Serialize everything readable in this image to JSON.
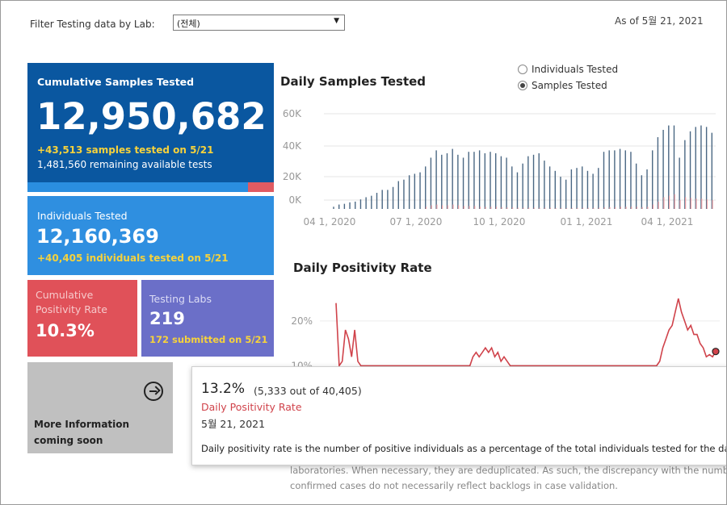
{
  "filter": {
    "label": "Filter Testing data by Lab:",
    "value": "(전체)"
  },
  "as_of": "As of 5월 21, 2021",
  "tiles": {
    "cumulative": {
      "title": "Cumulative Samples Tested",
      "value": "12,950,682",
      "delta": "+43,513 samples tested on 5/21",
      "remaining": "1,481,560 remaining available tests"
    },
    "individuals": {
      "title": "Individuals Tested",
      "value": "12,160,369",
      "delta": "+40,405  individuals  tested on 5/21"
    },
    "positivity": {
      "title_line1": "Cumulative",
      "title_line2": "Positivity Rate",
      "value": "10.3%"
    },
    "labs": {
      "title": "Testing Labs",
      "value": "219",
      "delta": "172 submitted on 5/21"
    },
    "more": {
      "line1": "More Information",
      "line2": "coming soon"
    }
  },
  "daily_samples": {
    "title": "Daily Samples Tested",
    "legend": [
      {
        "label": "Individuals Tested",
        "selected": false
      },
      {
        "label": "Samples Tested",
        "selected": true
      }
    ]
  },
  "daily_positivity": {
    "title": "Daily Positivity Rate"
  },
  "tooltip": {
    "value": "13.2%",
    "detail": "(5,333 out of  40,405)",
    "label": "Daily Positivity Rate",
    "date": "5월 21, 2021",
    "description": "Daily positivity rate is the number of positive individuals as a percentage of the total individuals tested for the day"
  },
  "footnote": {
    "line1": "laboratories. When necessary, they are deduplicated. As such, the discrepancy with the number",
    "line2": "confirmed cases do not necessarily reflect backlogs in case validation."
  },
  "colors": {
    "navy": "#0a57a0",
    "blue": "#2f8fe0",
    "red": "#e05159",
    "purple": "#6b6fc8",
    "grey": "#c0c0c0",
    "bar": "#4a6783",
    "line": "#d0434b"
  },
  "chart_data": [
    {
      "type": "bar",
      "title": "Daily Samples Tested",
      "x_tick_labels": [
        "04 1, 2020",
        "07 1, 2020",
        "10 1, 2020",
        "01 1, 2021",
        "04 1, 2021"
      ],
      "y_tick_labels": [
        "0K",
        "20K",
        "40K",
        "60K"
      ],
      "ylim": [
        0,
        65000
      ],
      "series": [
        {
          "name": "Samples Tested",
          "values": [
            1500,
            3000,
            3500,
            4500,
            5000,
            6500,
            8000,
            9000,
            11000,
            13000,
            13000,
            15000,
            19000,
            20000,
            23000,
            24000,
            25000,
            29000,
            35000,
            40000,
            37000,
            38000,
            41000,
            37000,
            35000,
            39000,
            39000,
            40000,
            38000,
            39000,
            38000,
            36000,
            35000,
            29000,
            25000,
            31000,
            36000,
            37000,
            38000,
            33000,
            29000,
            26000,
            22000,
            20000,
            27000,
            28000,
            29000,
            26000,
            24000,
            28000,
            39000,
            40000,
            40000,
            41000,
            40000,
            39000,
            31000,
            23000,
            27000,
            40000,
            49000,
            54000,
            57000,
            57000,
            35000,
            47000,
            53000,
            56000,
            57000,
            56000,
            52000
          ]
        },
        {
          "name": "Positive (red overlay)",
          "values": [
            0,
            0,
            0,
            0,
            0,
            0,
            0,
            0,
            0,
            0,
            0,
            0,
            0,
            0,
            0,
            0,
            0,
            1500,
            2500,
            3000,
            2500,
            2500,
            3000,
            2500,
            2000,
            2000,
            2000,
            1500,
            1500,
            1500,
            1500,
            1200,
            1000,
            1000,
            800,
            800,
            800,
            800,
            800,
            700,
            700,
            600,
            600,
            500,
            600,
            700,
            700,
            700,
            700,
            800,
            1000,
            1200,
            1200,
            1500,
            1500,
            1500,
            1500,
            1200,
            1500,
            3000,
            5000,
            8000,
            9000,
            10000,
            6000,
            8000,
            7500,
            7000,
            7000,
            6500,
            6000
          ]
        }
      ]
    },
    {
      "type": "line",
      "title": "Daily Positivity Rate",
      "y_tick_labels": [
        "10%",
        "20%"
      ],
      "ylim": [
        9,
        27
      ],
      "series": [
        {
          "name": "Daily Positivity Rate",
          "values": [
            24,
            10,
            11,
            18,
            16,
            12,
            18,
            11,
            10,
            10,
            10,
            10,
            10,
            10,
            10,
            10,
            10,
            10,
            10,
            10,
            10,
            10,
            10,
            10,
            10,
            10,
            10,
            10,
            10,
            10,
            10,
            10,
            10,
            10,
            10,
            10,
            10,
            10,
            10,
            10,
            10,
            10,
            10,
            10,
            12,
            13,
            12,
            13,
            14,
            13,
            14,
            12,
            13,
            11,
            12,
            11,
            10,
            10,
            10,
            10,
            10,
            10,
            10,
            10,
            10,
            10,
            10,
            10,
            10,
            10,
            10,
            10,
            10,
            10,
            10,
            10,
            10,
            10,
            10,
            10,
            10,
            10,
            10,
            10,
            10,
            10,
            10,
            10,
            10,
            10,
            10,
            10,
            10,
            10,
            10,
            10,
            10,
            10,
            10,
            10,
            10,
            10,
            10,
            10,
            11,
            14,
            16,
            18,
            19,
            22,
            25,
            22,
            20,
            18,
            19,
            17,
            17,
            15,
            14,
            12,
            12.5,
            12,
            13.2
          ]
        }
      ]
    }
  ]
}
